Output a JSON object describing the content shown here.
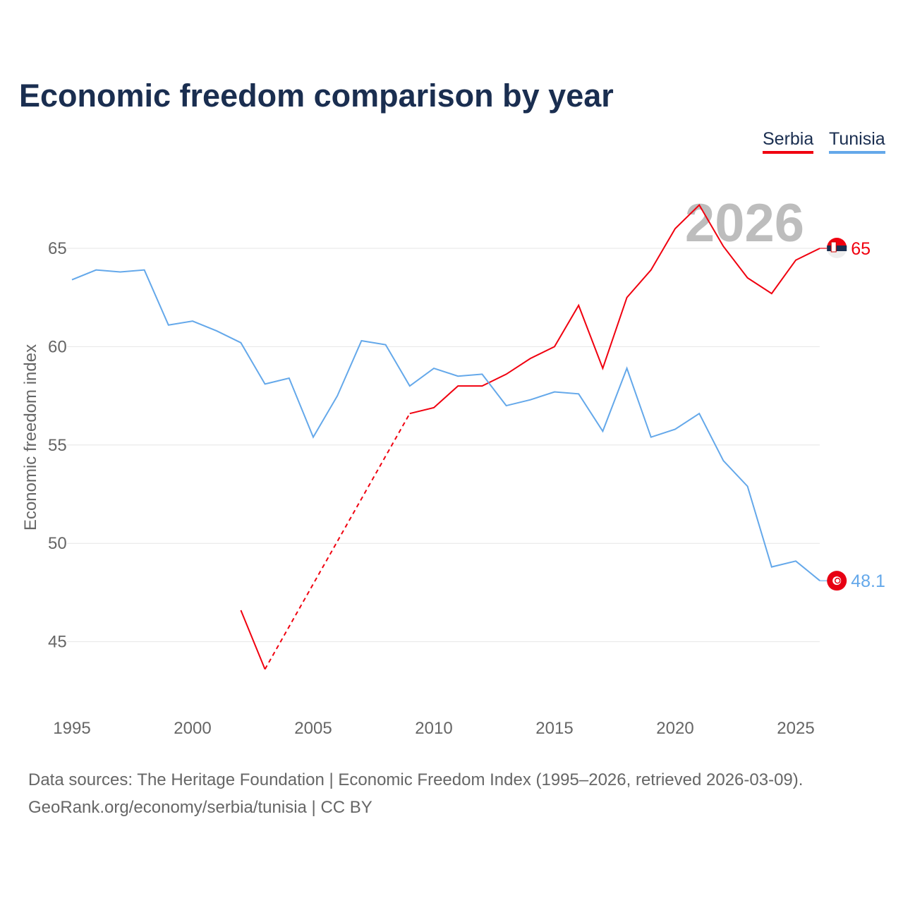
{
  "title": "Economic freedom comparison by year",
  "legend": {
    "serbia": "Serbia",
    "tunisia": "Tunisia"
  },
  "source": {
    "line1": "Data sources: The Heritage Foundation | Economic Freedom Index (1995–2026, retrieved 2026-03-09).",
    "line2": "GeoRank.org/economy/serbia/tunisia | CC BY"
  },
  "chart_data": {
    "type": "line",
    "title": "Economic freedom comparison by year",
    "xlabel": "",
    "ylabel": "Economic freedom index",
    "year_label": "2026",
    "xlim": [
      1995,
      2026
    ],
    "ylim": [
      42,
      68.5
    ],
    "xticks": [
      1995,
      2000,
      2005,
      2010,
      2015,
      2020,
      2025
    ],
    "yticks": [
      45,
      50,
      55,
      60,
      65
    ],
    "grid": true,
    "legend_position": "top-right",
    "series": [
      {
        "name": "Serbia",
        "color": "#f0000f",
        "end_label": "65",
        "x": [
          2002,
          2003,
          2009,
          2010,
          2011,
          2012,
          2013,
          2014,
          2015,
          2016,
          2017,
          2018,
          2019,
          2020,
          2021,
          2022,
          2023,
          2024,
          2025,
          2026
        ],
        "y": [
          46.6,
          43.6,
          56.6,
          56.9,
          58.0,
          58.0,
          58.6,
          59.4,
          60.0,
          62.1,
          58.9,
          62.5,
          63.9,
          66.0,
          67.2,
          65.1,
          63.5,
          62.7,
          64.4,
          65.0
        ],
        "gap_dashed": [
          [
            2003,
            2009
          ]
        ]
      },
      {
        "name": "Tunisia",
        "color": "#64a8ea",
        "end_label": "48.1",
        "x": [
          1995,
          1996,
          1997,
          1998,
          1999,
          2000,
          2001,
          2002,
          2003,
          2004,
          2005,
          2006,
          2007,
          2008,
          2009,
          2010,
          2011,
          2012,
          2013,
          2014,
          2015,
          2016,
          2017,
          2018,
          2019,
          2020,
          2021,
          2022,
          2023,
          2024,
          2025,
          2026
        ],
        "y": [
          63.4,
          63.9,
          63.8,
          63.9,
          61.1,
          61.3,
          60.8,
          60.2,
          58.1,
          58.4,
          55.4,
          57.5,
          60.3,
          60.1,
          58.0,
          58.9,
          58.5,
          58.6,
          57.0,
          57.3,
          57.7,
          57.6,
          55.7,
          58.9,
          55.4,
          55.8,
          56.6,
          54.2,
          52.9,
          48.8,
          49.1,
          48.1
        ]
      }
    ]
  }
}
